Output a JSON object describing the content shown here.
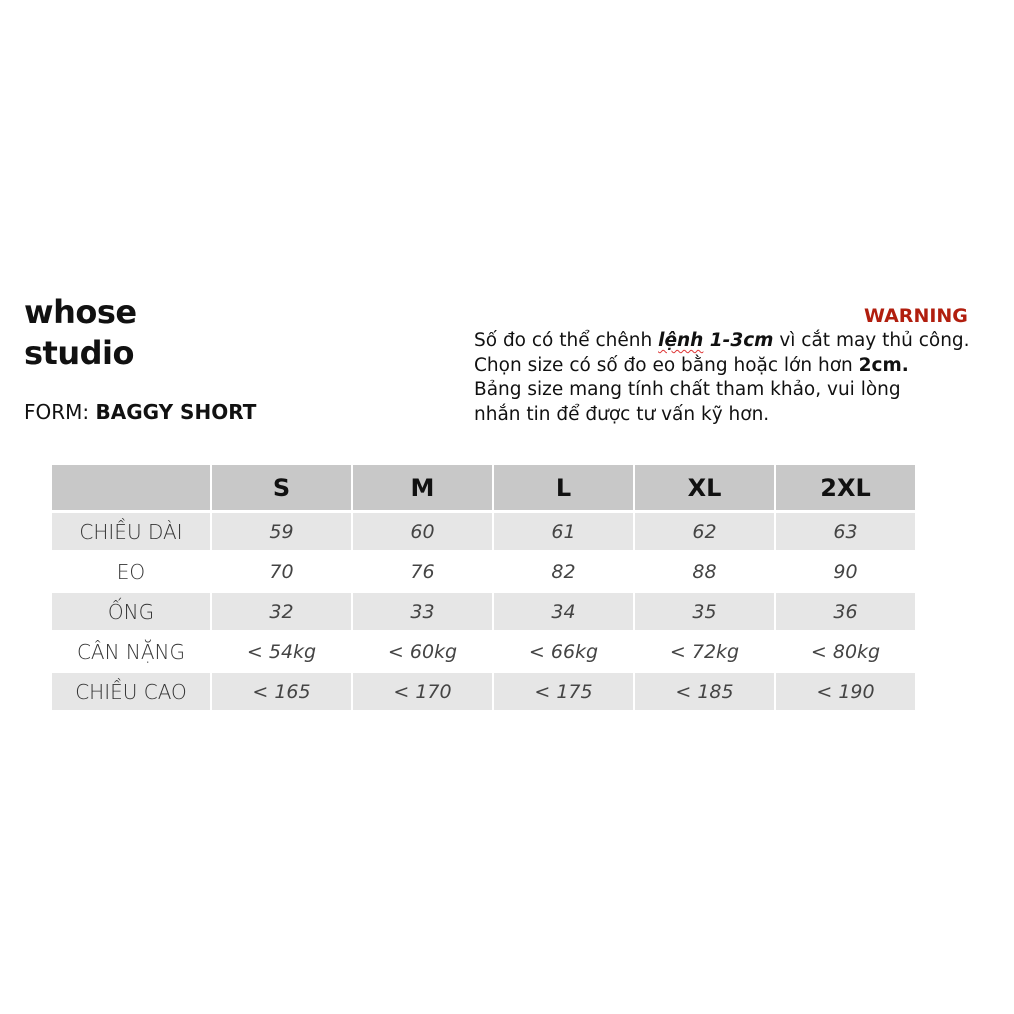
{
  "brand": {
    "line1": "whose",
    "line2": "studio"
  },
  "form": {
    "label": "FORM:",
    "value": "BAGGY SHORT"
  },
  "warning": {
    "title": "WARNING",
    "line1_a": "Số đo có thể chênh ",
    "line1_em1": "lệnh",
    "line1_em2": " 1-3cm",
    "line1_b": " vì cắt may thủ công.",
    "line2_a": "Chọn size có số đo eo bằng hoặc lớn hơn ",
    "line2_bold": "2cm.",
    "line3": "Bảng size mang tính chất tham khảo, vui lòng",
    "line4": "nhắn tin để được tư vấn kỹ hơn."
  },
  "table": {
    "sizes": [
      "S",
      "M",
      "L",
      "XL",
      "2XL"
    ],
    "rows": [
      {
        "label": "CHIỀU DÀI",
        "values": [
          "59",
          "60",
          "61",
          "62",
          "63"
        ]
      },
      {
        "label": "EO",
        "values": [
          "70",
          "76",
          "82",
          "88",
          "90"
        ]
      },
      {
        "label": "ỐNG",
        "values": [
          "32",
          "33",
          "34",
          "35",
          "36"
        ]
      },
      {
        "label": "CÂN NẶNG",
        "values": [
          "< 54kg",
          "< 60kg",
          "< 66kg",
          "< 72kg",
          "< 80kg"
        ]
      },
      {
        "label": "CHIỀU CAO",
        "values": [
          "< 165",
          "< 170",
          "< 175",
          "< 185",
          "< 190"
        ]
      }
    ]
  },
  "colors": {
    "warning": "#b11e0e",
    "header_bg": "#c8c8c8",
    "row_bg": "#e6e6e6"
  }
}
